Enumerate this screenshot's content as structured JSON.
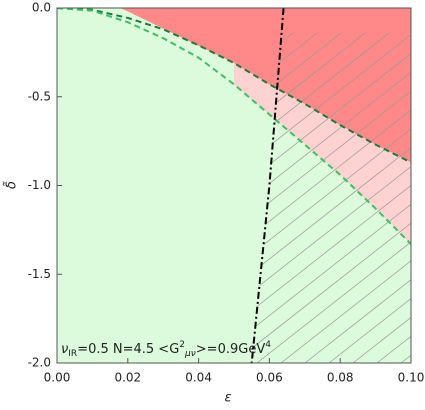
{
  "chart_data": {
    "type": "region",
    "x_label": "ε",
    "y_label": "δ̃",
    "xlim": [
      0,
      0.1
    ],
    "ylim": [
      -2,
      0
    ],
    "xticks": [
      {
        "value": 0,
        "label": "0.00"
      },
      {
        "value": 0.02,
        "label": "0.02"
      },
      {
        "value": 0.04,
        "label": "0.04"
      },
      {
        "value": 0.06,
        "label": "0.06"
      },
      {
        "value": 0.08,
        "label": "0.08"
      },
      {
        "value": 0.1,
        "label": "0.10"
      }
    ],
    "yticks": [
      {
        "value": 0,
        "label": "0.0"
      },
      {
        "value": -0.5,
        "label": "-0.5"
      },
      {
        "value": -1,
        "label": "-1.0"
      },
      {
        "value": -1.5,
        "label": "-1.5"
      },
      {
        "value": -2,
        "label": "-2.0"
      }
    ],
    "series": [
      {
        "color": "#1f7a3a",
        "dash": "dashed",
        "x": [
          0,
          0.01,
          0.02,
          0.03,
          0.04,
          0.05,
          0.06,
          0.07,
          0.08,
          0.09,
          0.1
        ],
        "y": [
          0,
          -0.01,
          -0.056,
          -0.12,
          -0.21,
          -0.31,
          -0.43,
          -0.54,
          -0.66,
          -0.77,
          -0.87
        ]
      },
      {
        "color": "#3cc060",
        "dash": "dashed",
        "x": [
          0,
          0.01,
          0.02,
          0.03,
          0.04,
          0.05,
          0.06,
          0.07,
          0.08,
          0.09,
          0.1
        ],
        "y": [
          0,
          -0.015,
          -0.08,
          -0.17,
          -0.28,
          -0.43,
          -0.6,
          -0.77,
          -0.94,
          -1.13,
          -1.33
        ]
      },
      {
        "color": "#000000",
        "dash": "dashdot",
        "x": [
          0.064,
          0.06,
          0.055
        ],
        "y": [
          0,
          -1,
          -2
        ]
      }
    ],
    "annotation_parts": [
      {
        "text": "ν",
        "style": "normal"
      },
      {
        "text": "IR",
        "style": "sub"
      },
      {
        "text": "=0.5  N=4.5  <G",
        "style": "normal"
      },
      {
        "text": "2",
        "style": "sup"
      },
      {
        "text": "μν",
        "style": "sub"
      },
      {
        "text": ">=0.9GeV",
        "style": "normal"
      },
      {
        "text": "4",
        "style": "sup"
      }
    ]
  }
}
